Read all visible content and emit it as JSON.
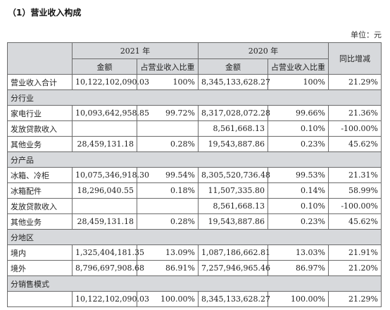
{
  "section_title": "（1）营业收入构成",
  "unit": "单位：元",
  "header": {
    "year_2021": "2021 年",
    "year_2020": "2020 年",
    "change": "同比增减",
    "amount": "金额",
    "share": "占营业收入比重"
  },
  "rows": [
    {
      "type": "data",
      "label": "营业收入合计",
      "a21": "10,122,102,090.03",
      "s21": "100%",
      "a20": "8,345,133,628.27",
      "s20": "100%",
      "chg": "21.29%"
    },
    {
      "type": "section",
      "label": "分行业"
    },
    {
      "type": "data",
      "label": "家电行业",
      "a21": "10,093,642,958.85",
      "s21": "99.72%",
      "a20": "8,317,028,072.28",
      "s20": "99.66%",
      "chg": "21.36%"
    },
    {
      "type": "data",
      "label": "发放贷款收入",
      "a21": "",
      "s21": "",
      "a20": "8,561,668.13",
      "s20": "0.10%",
      "chg": "-100.00%"
    },
    {
      "type": "data",
      "label": "其他业务",
      "a21": "28,459,131.18",
      "s21": "0.28%",
      "a20": "19,543,887.86",
      "s20": "0.23%",
      "chg": "45.62%"
    },
    {
      "type": "section",
      "label": "分产品"
    },
    {
      "type": "data",
      "label": "冰箱、冷柜",
      "a21": "10,075,346,918.30",
      "s21": "99.54%",
      "a20": "8,305,520,736.48",
      "s20": "99.53%",
      "chg": "21.31%"
    },
    {
      "type": "data",
      "label": "冰箱配件",
      "a21": "18,296,040.55",
      "s21": "0.18%",
      "a20": "11,507,335.80",
      "s20": "0.14%",
      "chg": "58.99%"
    },
    {
      "type": "data",
      "label": "发放贷款收入",
      "a21": "",
      "s21": "",
      "a20": "8,561,668.13",
      "s20": "0.10%",
      "chg": "-100.00%"
    },
    {
      "type": "data",
      "label": "其他业务",
      "a21": "28,459,131.18",
      "s21": "0.28%",
      "a20": "19,543,887.86",
      "s20": "0.23%",
      "chg": "45.62%"
    },
    {
      "type": "section",
      "label": "分地区"
    },
    {
      "type": "data",
      "label": "境内",
      "a21": "1,325,404,181.35",
      "s21": "13.09%",
      "a20": "1,087,186,662.81",
      "s20": "13.03%",
      "chg": "21.91%"
    },
    {
      "type": "data",
      "label": "境外",
      "a21": "8,796,697,908.68",
      "s21": "86.91%",
      "a20": "7,257,946,965.46",
      "s20": "86.97%",
      "chg": "21.20%"
    },
    {
      "type": "section",
      "label": "分销售模式"
    },
    {
      "type": "data",
      "label": "",
      "a21": "10,122,102,090.03",
      "s21": "100.00%",
      "a20": "8,345,133,628.27",
      "s20": "100.00%",
      "chg": "21.29%"
    }
  ]
}
